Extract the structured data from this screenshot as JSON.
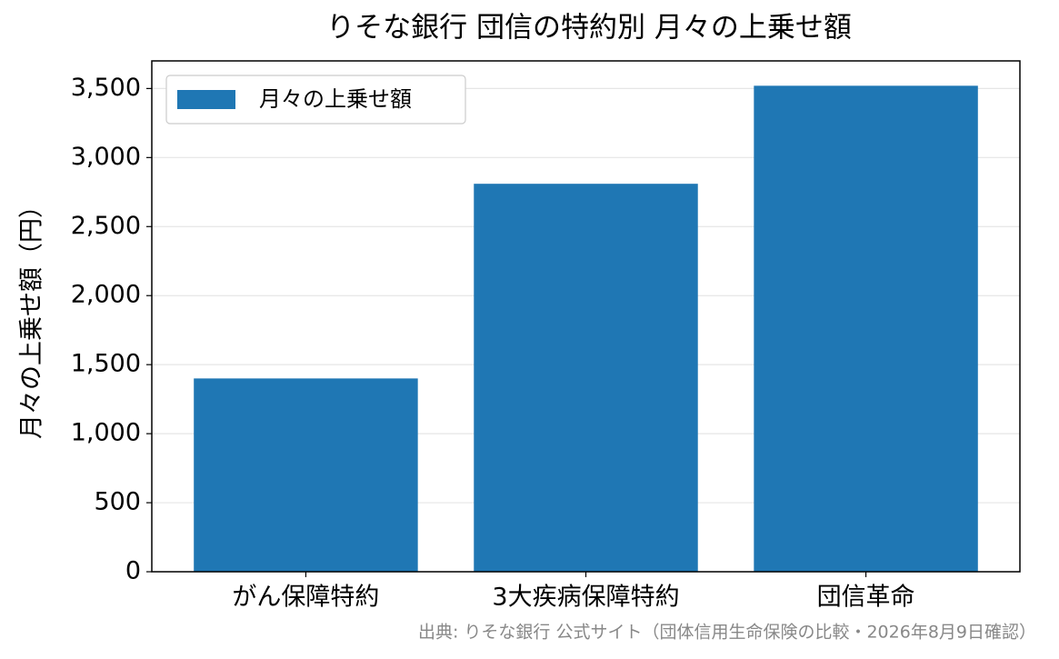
{
  "chart_data": {
    "type": "bar",
    "title": "りそな銀行 団信の特約別 月々の上乗せ額",
    "y_label": "月々の上乗せ額（円）",
    "categories": [
      "がん保障特約",
      "3大疾病保障特約",
      "団信革命"
    ],
    "series": [
      {
        "name": "月々の上乗せ額",
        "color": "#1f77b4",
        "values": [
          1400,
          2810,
          3520
        ]
      }
    ],
    "ylim": [
      0,
      3700
    ],
    "yticks": [
      0,
      500,
      {
        "value": 1000,
        "label": "1,000"
      },
      {
        "value": 1500,
        "label": "1,500"
      },
      {
        "value": 2000,
        "label": "2,000"
      },
      {
        "value": 2500,
        "label": "2,500"
      },
      {
        "value": 3000,
        "label": "3,000"
      },
      {
        "value": 3500,
        "label": "3,500"
      }
    ],
    "grid": true,
    "legend": "upper left",
    "source": "出典: りそな銀行 公式サイト（団体信用生命保険の比較・2026年8月9日確認）"
  }
}
